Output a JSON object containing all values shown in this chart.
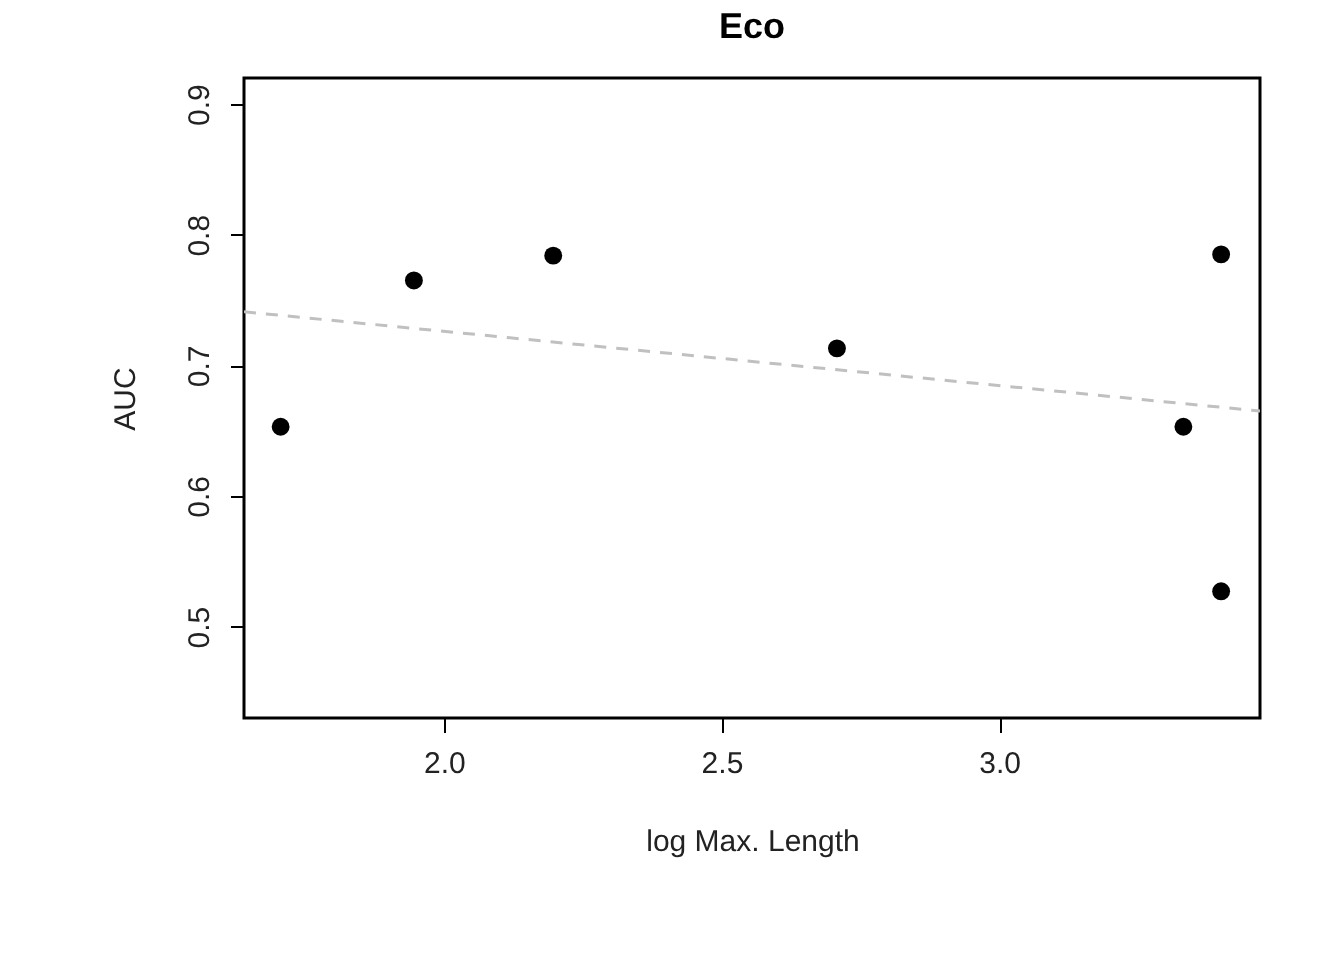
{
  "chart_data": {
    "type": "scatter",
    "title": "Eco",
    "xlabel": "log Max. Length",
    "ylabel": "AUC",
    "xlim": [
      1.64,
      3.47
    ],
    "ylim": [
      0.43,
      0.92
    ],
    "xticks": [
      {
        "value": 2,
        "label": "2.0"
      },
      2.5,
      {
        "value": 3,
        "label": "3.0"
      }
    ],
    "yticks": [
      0.5,
      0.6,
      0.7,
      0.8,
      0.9
    ],
    "grid": false,
    "marker": "circle",
    "series": [
      {
        "color": "#000000",
        "x": [
          1.706,
          1.946,
          2.197,
          2.708,
          3.332,
          3.4,
          3.4
        ],
        "values": [
          0.653,
          0.765,
          0.784,
          0.713,
          0.653,
          0.785,
          0.527
        ]
      },
      {
        "type": "line",
        "color": "#c0c0c0",
        "line_style": "dashed",
        "marker": "none",
        "x": [
          1.64,
          3.47
        ],
        "values": [
          0.741,
          0.665
        ]
      }
    ]
  }
}
